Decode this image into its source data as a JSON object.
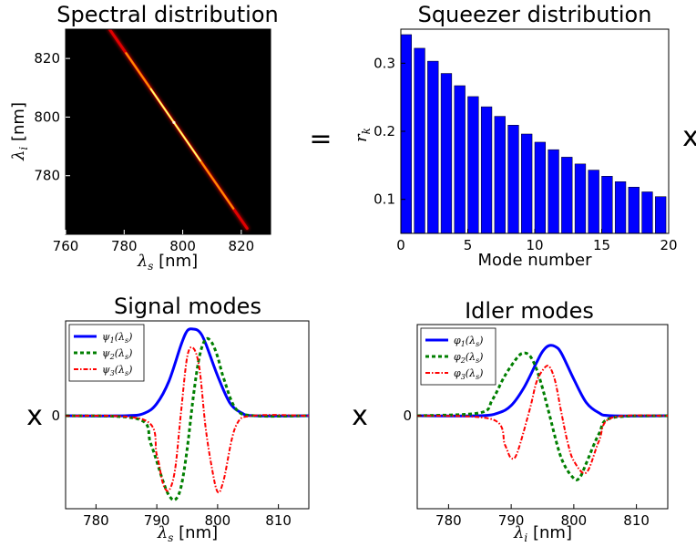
{
  "operators": {
    "equals": "=",
    "times_1": "x",
    "times_2": "x",
    "times_3": "x"
  },
  "chart_data": [
    {
      "id": "spectral",
      "type": "heatmap",
      "title": "Spectral distribution",
      "xlabel_sym": "λ",
      "xlabel_sub": "s",
      "xlabel_unit": " [nm]",
      "ylabel_sym": "λ",
      "ylabel_sub": "i",
      "ylabel_unit": " [nm]",
      "xlim": [
        760,
        830
      ],
      "ylim": [
        760,
        830
      ],
      "xticks": [
        760,
        780,
        800,
        820
      ],
      "yticks": [
        780,
        800,
        820
      ],
      "ridge": {
        "x_start": 775,
        "y_start": 830,
        "x_end": 822,
        "y_end": 762,
        "peak_x": 797
      },
      "colormap": "hot",
      "background": "#000000"
    },
    {
      "id": "squeezer",
      "type": "bar",
      "title": "Squeezer distribution",
      "xlabel": "Mode number",
      "ylabel_sym": "r",
      "ylabel_sub": "k",
      "xlim": [
        0,
        20
      ],
      "ylim": [
        0.05,
        0.35
      ],
      "xticks": [
        0,
        5,
        10,
        15,
        20
      ],
      "yticks": [
        0.1,
        0.2,
        0.3
      ],
      "ytick_labels": [
        "0.1",
        "0.2",
        "0.3"
      ],
      "bar_color": "#0000ff",
      "x": [
        0,
        1,
        2,
        3,
        4,
        5,
        6,
        7,
        8,
        9,
        10,
        11,
        12,
        13,
        14,
        15,
        16,
        17,
        18,
        19
      ],
      "values": [
        0.342,
        0.322,
        0.303,
        0.285,
        0.267,
        0.251,
        0.236,
        0.222,
        0.209,
        0.196,
        0.184,
        0.173,
        0.162,
        0.152,
        0.143,
        0.134,
        0.126,
        0.118,
        0.111,
        0.104
      ]
    },
    {
      "id": "signal",
      "type": "line",
      "title": "Signal modes",
      "xlabel_sym": "λ",
      "xlabel_sub": "s",
      "xlabel_unit": " [nm]",
      "xlim": [
        775,
        815
      ],
      "xticks": [
        780,
        790,
        800,
        810
      ],
      "yticks": [
        0
      ],
      "legend_position": "top-left",
      "series": [
        {
          "name_sym": "ψ",
          "name_sub": "1",
          "name_arg": "(λ",
          "name_arg_sub": "s",
          "name_close": ")",
          "color": "#0000ff",
          "style": "solid",
          "x": [
            775,
            785,
            788,
            790,
            792,
            794,
            795,
            796,
            797,
            798,
            800,
            802,
            804,
            806,
            815
          ],
          "y": [
            0,
            0,
            0.03,
            0.14,
            0.4,
            0.82,
            0.98,
            1.0,
            0.97,
            0.84,
            0.46,
            0.15,
            0.03,
            0,
            0
          ]
        },
        {
          "name_sym": "ψ",
          "name_sub": "2",
          "name_arg": "(λ",
          "name_arg_sub": "s",
          "name_close": ")",
          "color": "#007f00",
          "style": "dotted",
          "x": [
            775,
            787,
            789,
            791,
            792,
            793,
            794,
            795,
            796,
            797,
            798,
            799,
            800,
            801,
            803,
            806,
            815
          ],
          "y": [
            0,
            -0.04,
            -0.32,
            -0.75,
            -0.92,
            -0.97,
            -0.82,
            -0.38,
            0.22,
            0.68,
            0.88,
            0.85,
            0.68,
            0.43,
            0.08,
            0,
            0
          ]
        },
        {
          "name_sym": "ψ",
          "name_sub": "3",
          "name_arg": "(λ",
          "name_arg_sub": "s",
          "name_close": ")",
          "color": "#ff0000",
          "style": "dashdot",
          "x": [
            775,
            788,
            790,
            791,
            792,
            793,
            794,
            795,
            796,
            797,
            798,
            799,
            800,
            801,
            803,
            806,
            815
          ],
          "y": [
            0,
            -0.05,
            -0.45,
            -0.78,
            -0.86,
            -0.62,
            0.05,
            0.68,
            0.78,
            0.55,
            -0.12,
            -0.58,
            -0.88,
            -0.74,
            -0.12,
            0,
            0
          ]
        }
      ]
    },
    {
      "id": "idler",
      "type": "line",
      "title": "Idler modes",
      "xlabel_sym": "λ",
      "xlabel_sub": "i",
      "xlabel_unit": " [nm]",
      "xlim": [
        775,
        815
      ],
      "xticks": [
        780,
        790,
        800,
        810
      ],
      "yticks": [
        0
      ],
      "legend_position": "top-left",
      "series": [
        {
          "name_sym": "φ",
          "name_sub": "1",
          "name_arg": "(λ",
          "name_arg_sub": "s",
          "name_close": ")",
          "color": "#0000ff",
          "style": "solid",
          "x": [
            775,
            785,
            788,
            790,
            792,
            794,
            795,
            796,
            797,
            798,
            800,
            802,
            804,
            806,
            815
          ],
          "y": [
            0,
            0,
            0.04,
            0.14,
            0.38,
            0.72,
            0.88,
            0.96,
            0.95,
            0.86,
            0.5,
            0.18,
            0.04,
            0,
            0
          ]
        },
        {
          "name_sym": "φ",
          "name_sub": "2",
          "name_arg": "(λ",
          "name_arg_sub": "s",
          "name_close": ")",
          "color": "#007f00",
          "style": "dotted",
          "x": [
            775,
            785,
            787,
            789,
            791,
            792,
            793,
            794,
            795,
            796,
            798,
            800,
            801,
            802,
            804,
            806,
            815
          ],
          "y": [
            0,
            0.04,
            0.22,
            0.55,
            0.8,
            0.86,
            0.82,
            0.65,
            0.38,
            0.05,
            -0.58,
            -0.86,
            -0.84,
            -0.65,
            -0.25,
            -0.03,
            0
          ]
        },
        {
          "name_sym": "φ",
          "name_sub": "3",
          "name_arg": "(λ",
          "name_arg_sub": "s",
          "name_close": ")",
          "color": "#ff0000",
          "style": "dashdot",
          "x": [
            775,
            787,
            789,
            790,
            791,
            793,
            794,
            795,
            796,
            797,
            798,
            799,
            800,
            802,
            804,
            806,
            815
          ],
          "y": [
            0,
            -0.05,
            -0.4,
            -0.58,
            -0.5,
            0.1,
            0.45,
            0.62,
            0.68,
            0.48,
            0.05,
            -0.36,
            -0.62,
            -0.78,
            -0.35,
            -0.03,
            0
          ]
        }
      ]
    }
  ]
}
